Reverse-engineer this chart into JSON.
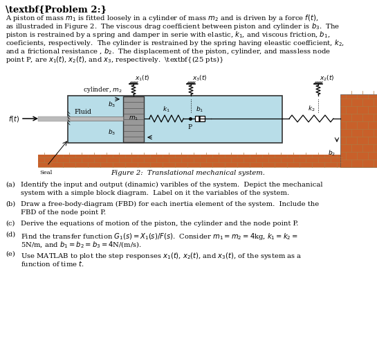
{
  "title": "Problem 2:",
  "body_lines": [
    "A piston of mass $m_1$ is fitted loosely in a cylinder of mass $m_2$ and is driven by a force $f(t)$,",
    "as illustraded in Figure 2.  The viscous drag coefficient between piston and cylinder is $b_3$.  The",
    "piston is restrained by a spring and damper in serie with elastic, $k_1$, and viscous friction, $b_1$,",
    "coeficients, respectively.  The cylinder is restrained by the spring having eleastic coefficient, $k_2$,",
    "and a frictional resistance , $b_2$.  The displacement of the piston, cylinder, and massless node",
    "point P, are $x_1(t)$, $x_2(t)$, and $x_3$, respectively.  \\textbf{(25 pts)}"
  ],
  "figure_caption": "Figure 2:  Translational mechanical system.",
  "qa": [
    [
      "(a)",
      "Identify the input and output (dinamic) varibles of the system.  Depict the mechanical",
      "system with a simple block diagram.  Label on it the variables of the system."
    ],
    [
      "(b)",
      "Draw a free-body-diagram (FBD) for each inertia element of the system.  Include the",
      "FBD of the node point P."
    ],
    [
      "(c)",
      "Derive the equations of motion of the piston, the cylinder and the node point P."
    ],
    [
      "(d)",
      "Find the transfer function $G_1(s) = X_1(s)/F(s)$.  Consider $m_1 = m_2 = 4$kg, $k_1 = k_2 =$",
      "5N/m, and $b_1 = b_2 = b_3 = 4$N/(m/s)."
    ],
    [
      "(e)",
      "Use MATLAB to plot the step responses $x_1(t)$, $x_2(t)$, and $x_3(t)$, of the system as a",
      "function of time $t$."
    ]
  ],
  "bg_color": "#ffffff",
  "cyl_fluid_color": "#b8dde8",
  "brick_color": "#c8602a",
  "brick_mortar": "#c8a070",
  "piston_color": "#888888",
  "rod_color": "#aaaaaa"
}
